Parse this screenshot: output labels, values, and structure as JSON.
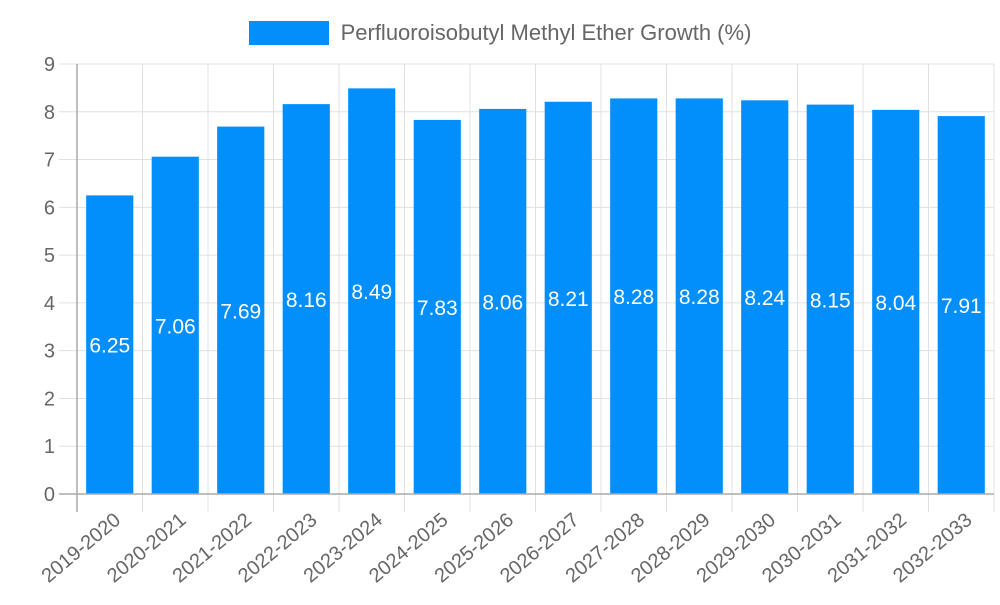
{
  "chart_data": {
    "type": "bar",
    "title": "",
    "xlabel": "",
    "ylabel": "",
    "ylim": [
      0,
      9
    ],
    "yticks": [
      0,
      1,
      2,
      3,
      4,
      5,
      6,
      7,
      8,
      9
    ],
    "grid": true,
    "legend_position": "top",
    "categories": [
      "2019-2020",
      "2020-2021",
      "2021-2022",
      "2022-2023",
      "2023-2024",
      "2024-2025",
      "2025-2026",
      "2026-2027",
      "2027-2028",
      "2028-2029",
      "2029-2030",
      "2030-2031",
      "2031-2032",
      "2032-2033"
    ],
    "series": [
      {
        "name": "Perfluoroisobutyl Methyl Ether Growth (%)",
        "color": "#038ffb",
        "values": [
          6.25,
          7.06,
          7.69,
          8.16,
          8.49,
          7.83,
          8.06,
          8.21,
          8.28,
          8.28,
          8.24,
          8.15,
          8.04,
          7.91
        ]
      }
    ]
  },
  "legend": {
    "label": "Perfluoroisobutyl Methyl Ether Growth (%)",
    "color": "#038ffb"
  },
  "colors": {
    "bar": "#038ffb",
    "grid": "#e0e0e0",
    "axis": "#aaaaaa",
    "text": "#666666",
    "data_label": "#ffffff"
  }
}
